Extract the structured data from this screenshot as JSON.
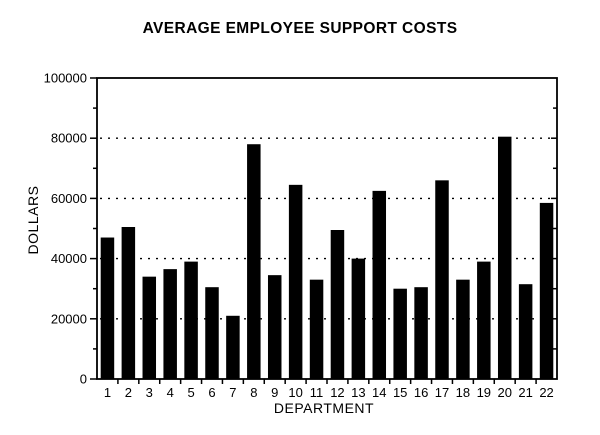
{
  "page": {
    "ink": "#000000",
    "paper": "#ffffff"
  },
  "chart_data": {
    "type": "bar",
    "title": "AVERAGE EMPLOYEE SUPPORT COSTS",
    "xlabel": "DEPARTMENT",
    "ylabel": "DOLLARS",
    "categories": [
      "1",
      "2",
      "3",
      "4",
      "5",
      "6",
      "7",
      "8",
      "9",
      "10",
      "11",
      "12",
      "13",
      "14",
      "15",
      "16",
      "17",
      "18",
      "19",
      "20",
      "21",
      "22"
    ],
    "values": [
      47000,
      50500,
      34000,
      36500,
      39000,
      30500,
      21000,
      78000,
      34500,
      64500,
      33000,
      49500,
      40000,
      62500,
      30000,
      30500,
      66000,
      33000,
      39000,
      80500,
      31500,
      58500
    ],
    "ylim": [
      0,
      100000
    ],
    "ytick_major": 20000,
    "ytick_minor": 10000,
    "ytick_labels": [
      "0",
      "20000",
      "40000",
      "60000",
      "80000",
      "100000"
    ],
    "gridlines": {
      "style": "dotted",
      "orientation": "horizontal",
      "at": [
        20000,
        40000,
        60000,
        80000
      ]
    },
    "bar_color": "#000000",
    "legend": false,
    "frame": true
  }
}
